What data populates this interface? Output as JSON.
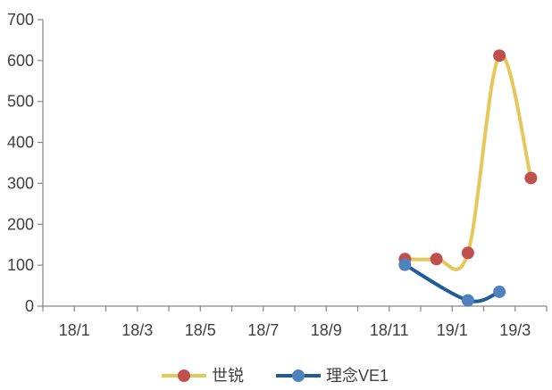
{
  "chart_data": {
    "type": "line",
    "title": "",
    "xlabel": "",
    "ylabel": "",
    "x_ticks": [
      "18/1",
      "18/3",
      "18/5",
      "18/7",
      "18/9",
      "18/11",
      "19/1",
      "19/3"
    ],
    "x_range": [
      "2018-01",
      "2019-04"
    ],
    "ylim": [
      0,
      700
    ],
    "y_ticks": [
      0,
      100,
      200,
      300,
      400,
      500,
      600,
      700
    ],
    "grid": false,
    "legend_position": "bottom",
    "series": [
      {
        "name": "世锐",
        "color": "#E6C75A",
        "marker_color": "#C0504D",
        "smooth": true,
        "points": [
          {
            "x": "2018-12",
            "y": 115
          },
          {
            "x": "2019-01",
            "y": 115
          },
          {
            "x": "2019-02",
            "y": 130
          },
          {
            "x": "2019-03",
            "y": 612
          },
          {
            "x": "2019-04",
            "y": 313
          }
        ]
      },
      {
        "name": "理念VE1",
        "color": "#1F5C99",
        "marker_color": "#4F81BD",
        "smooth": true,
        "points": [
          {
            "x": "2018-12",
            "y": 101
          },
          {
            "x": "2019-02",
            "y": 14
          },
          {
            "x": "2019-03",
            "y": 35
          }
        ]
      }
    ]
  }
}
